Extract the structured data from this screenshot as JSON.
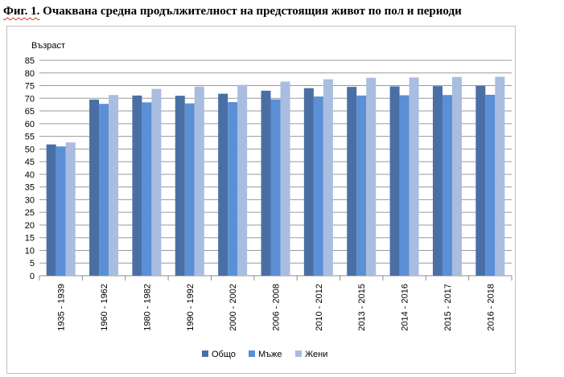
{
  "figure_label": "Фиг. 1.",
  "figure_title": "Очаквана средна продължителност на предстоящия живот по пол и периоди",
  "chart_data": {
    "type": "bar",
    "title": "",
    "ylabel": "Възраст",
    "xlabel": "",
    "ylim": [
      0,
      85
    ],
    "yticks": [
      0,
      5,
      10,
      15,
      20,
      25,
      30,
      35,
      40,
      45,
      50,
      55,
      60,
      65,
      70,
      75,
      80,
      85
    ],
    "grid": true,
    "legend_position": "bottom",
    "categories": [
      "1935 - 1939",
      "1960 - 1962",
      "1980 - 1982",
      "1990 - 1992",
      "2000 - 2002",
      "2006 - 2008",
      "2010 - 2012",
      "2013 - 2015",
      "2014 - 2016",
      "2015 - 2017",
      "2016 - 2018"
    ],
    "series": [
      {
        "name": "Общо",
        "color": "#4a6fa5",
        "values": [
          51.8,
          69.5,
          71.1,
          71.0,
          71.8,
          73.0,
          74.0,
          74.5,
          74.7,
          74.8,
          74.9
        ]
      },
      {
        "name": "Мъже",
        "color": "#5b8fd6",
        "values": [
          51.0,
          67.8,
          68.4,
          68.0,
          68.5,
          69.6,
          70.7,
          71.1,
          71.2,
          71.3,
          71.4
        ]
      },
      {
        "name": "Жени",
        "color": "#a9bde0",
        "values": [
          52.6,
          71.3,
          73.7,
          74.6,
          75.3,
          76.6,
          77.5,
          78.1,
          78.2,
          78.4,
          78.5
        ]
      }
    ]
  }
}
